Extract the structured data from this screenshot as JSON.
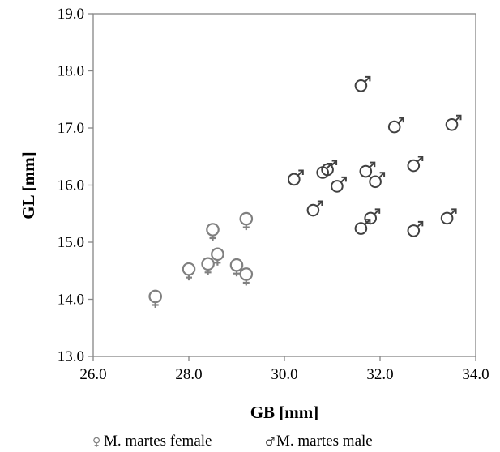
{
  "chart_data": {
    "type": "scatter",
    "xlabel": "GB [mm]",
    "ylabel": "GL [mm]",
    "xlim": [
      26.0,
      34.0
    ],
    "ylim": [
      13.0,
      19.0
    ],
    "xticks": [
      26.0,
      28.0,
      30.0,
      32.0,
      34.0
    ],
    "yticks": [
      13.0,
      14.0,
      15.0,
      16.0,
      17.0,
      18.0,
      19.0
    ],
    "xtick_labels": [
      "26.0",
      "28.0",
      "30.0",
      "32.0",
      "34.0"
    ],
    "ytick_labels": [
      "13.0",
      "14.0",
      "15.0",
      "16.0",
      "17.0",
      "18.0",
      "19.0"
    ],
    "grid": false,
    "legend_position": "bottom",
    "series": [
      {
        "name": "M. martes female",
        "legend_symbol": "♀",
        "marker": "female-symbol",
        "color": "#808080",
        "points": [
          [
            27.3,
            14.05
          ],
          [
            28.0,
            14.53
          ],
          [
            28.4,
            14.62
          ],
          [
            28.5,
            15.22
          ],
          [
            28.6,
            14.79
          ],
          [
            29.0,
            14.6
          ],
          [
            29.2,
            14.44
          ],
          [
            29.2,
            15.41
          ]
        ]
      },
      {
        "name": "M. martes male",
        "legend_symbol": "♂",
        "marker": "male-symbol",
        "color": "#404040",
        "points": [
          [
            30.2,
            16.1
          ],
          [
            30.6,
            15.56
          ],
          [
            30.8,
            16.22
          ],
          [
            30.9,
            16.27
          ],
          [
            31.1,
            15.98
          ],
          [
            31.6,
            17.74
          ],
          [
            31.6,
            15.24
          ],
          [
            31.7,
            16.24
          ],
          [
            31.8,
            15.42
          ],
          [
            31.9,
            16.06
          ],
          [
            32.3,
            17.02
          ],
          [
            32.7,
            15.2
          ],
          [
            32.7,
            16.34
          ],
          [
            33.4,
            15.42
          ],
          [
            33.5,
            17.06
          ]
        ]
      }
    ]
  }
}
